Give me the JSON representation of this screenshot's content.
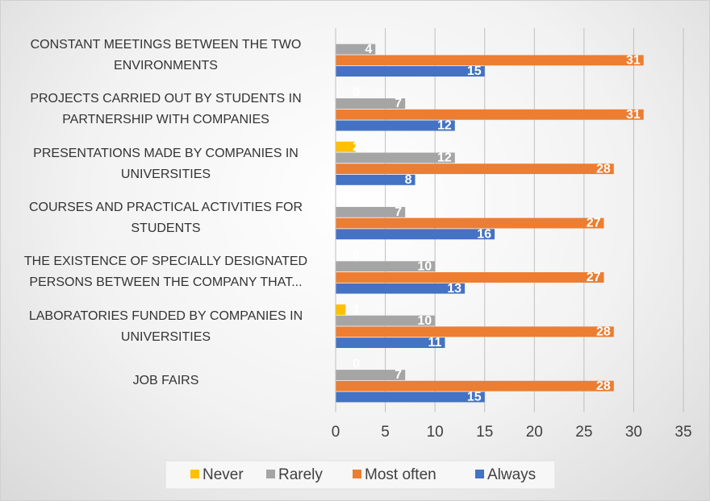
{
  "chart_data": {
    "type": "hbar",
    "categories": [
      "CONSTANT MEETINGS BETWEEN THE TWO ENVIRONMENTS",
      "PROJECTS CARRIED OUT BY STUDENTS IN PARTNERSHIP WITH COMPANIES",
      "PRESENTATIONS MADE BY COMPANIES IN UNIVERSITIES",
      "COURSES AND PRACTICAL ACTIVITIES FOR STUDENTS",
      "THE EXISTENCE OF SPECIALLY DESIGNATED PERSONS BETWEEN THE COMPANY THAT...",
      "LABORATORIES FUNDED BY COMPANIES IN UNIVERSITIES",
      "JOB FAIRS"
    ],
    "series": [
      {
        "name": "Never",
        "color": "#ffc000",
        "values": [
          null,
          0,
          2,
          0,
          0,
          1,
          0
        ]
      },
      {
        "name": "Rarely",
        "color": "#a5a5a5",
        "values": [
          4,
          7,
          12,
          7,
          10,
          10,
          7
        ]
      },
      {
        "name": "Most often",
        "color": "#ed7d31",
        "values": [
          31,
          31,
          28,
          27,
          27,
          28,
          28
        ]
      },
      {
        "name": "Always",
        "color": "#4472c4",
        "values": [
          15,
          12,
          8,
          16,
          13,
          11,
          15
        ]
      }
    ],
    "xlim": [
      0,
      35
    ],
    "xticks": [
      0,
      5,
      10,
      15,
      20,
      25,
      30,
      35
    ],
    "grid": true,
    "legend": "bottom"
  }
}
